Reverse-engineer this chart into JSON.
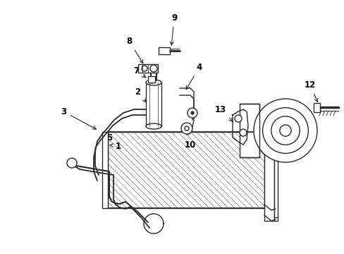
{
  "background_color": "#ffffff",
  "line_color": "#2a2a2a",
  "label_color": "#000000",
  "fig_width": 4.89,
  "fig_height": 3.6,
  "dpi": 100,
  "lw": 1.0,
  "font_size": 8.5
}
